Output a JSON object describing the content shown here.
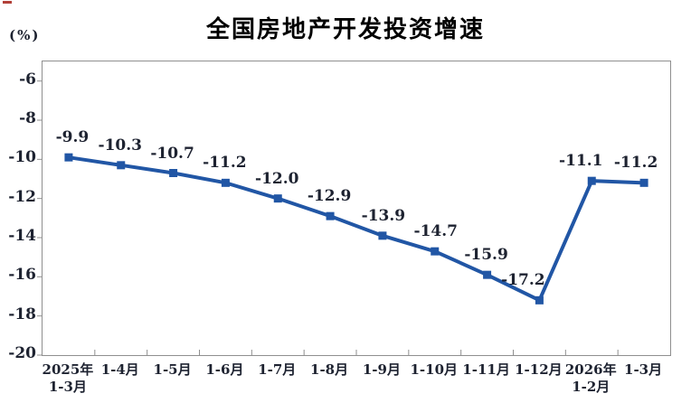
{
  "decor": {
    "top_left_mark_color": "#b24038"
  },
  "chart_data": {
    "type": "line",
    "title": "全国房地产开发投资增速",
    "unit_label": "(%)",
    "categories": [
      "2025年\n1-3月",
      "1-4月",
      "1-5月",
      "1-6月",
      "1-7月",
      "1-8月",
      "1-9月",
      "1-10月",
      "1-11月",
      "1-12月",
      "2026年\n1-2月",
      "1-3月"
    ],
    "values": [
      -9.9,
      -10.3,
      -10.7,
      -11.2,
      -12.0,
      -12.9,
      -13.9,
      -14.7,
      -15.9,
      -17.2,
      -11.1,
      -11.2
    ],
    "data_labels": [
      "-9.9",
      "-10.3",
      "-10.7",
      "-11.2",
      "-12.0",
      "-12.9",
      "-13.9",
      "-14.7",
      "-15.9",
      "-17.2",
      "-11.1",
      "-11.2"
    ],
    "yticks": [
      -6,
      -8,
      -10,
      -12,
      -14,
      -16,
      -18,
      -20
    ],
    "ylim": [
      -20,
      -5
    ],
    "grid": false,
    "legend": null,
    "marker": "square",
    "line_color": "#2156A5",
    "label_color": "#1d2230",
    "axis_color": "#8f8f8f",
    "title_color": "#000000"
  }
}
